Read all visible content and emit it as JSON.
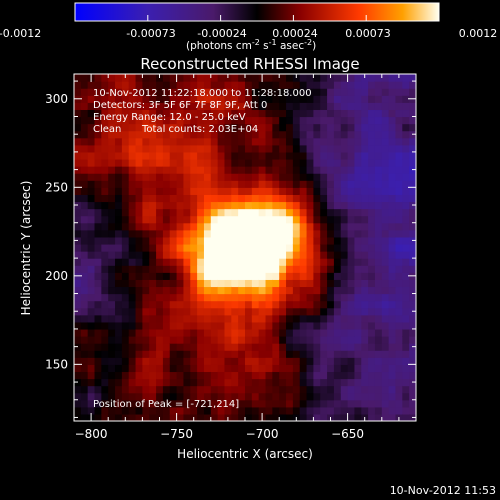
{
  "colorbar": {
    "tick_labels": [
      "-0.0012",
      "-0.00073",
      "-0.00024",
      "0.00024",
      "0.00073",
      "0.0012"
    ],
    "range": [
      -0.0012,
      0.0012
    ],
    "unit_label_main": "(photons cm",
    "unit_sup_1": "-2",
    "unit_label_mid_1": " s",
    "unit_sup_2": "-1",
    "unit_label_mid_2": " asec",
    "unit_sup_3": "-2",
    "unit_label_end": ")"
  },
  "chart": {
    "title": "Reconstructed RHESSI Image",
    "xlabel": "Heliocentric X (arcsec)",
    "ylabel": "Heliocentric Y (arcsec)",
    "xlim": [
      -810,
      -610
    ],
    "ylim": [
      118,
      314
    ],
    "xticks": [
      -800,
      -750,
      -700,
      -650
    ],
    "yticks": [
      150,
      200,
      250,
      300
    ],
    "annotations": {
      "time_range": "10-Nov-2012 11:22:18.000 to 11:28:18.000",
      "detectors": "Detectors: 3F 5F 6F 7F 8F 9F, Att 0",
      "energy": "Energy Range: 12.0 - 25.0 keV",
      "algorithm": "Clean",
      "counts": "Total counts: 2.03E+04",
      "peak": "Position of Peak = [-721,214]"
    }
  },
  "chart_data": {
    "type": "heatmap",
    "title": "Reconstructed RHESSI Image",
    "xlabel": "Heliocentric X (arcsec)",
    "ylabel": "Heliocentric Y (arcsec)",
    "xlim": [
      -810,
      -610
    ],
    "ylim": [
      118,
      314
    ],
    "colorbar_range": [
      -0.0012,
      0.0012
    ],
    "peak_position": [
      -721,
      214
    ],
    "sources": [
      {
        "x": -721,
        "y": 214,
        "value": 0.0012
      },
      {
        "x": -700,
        "y": 220,
        "value": 0.0008
      },
      {
        "x": -685,
        "y": 218,
        "value": 0.0006
      }
    ]
  },
  "footer": {
    "timestamp": "10-Nov-2012 11:53"
  }
}
